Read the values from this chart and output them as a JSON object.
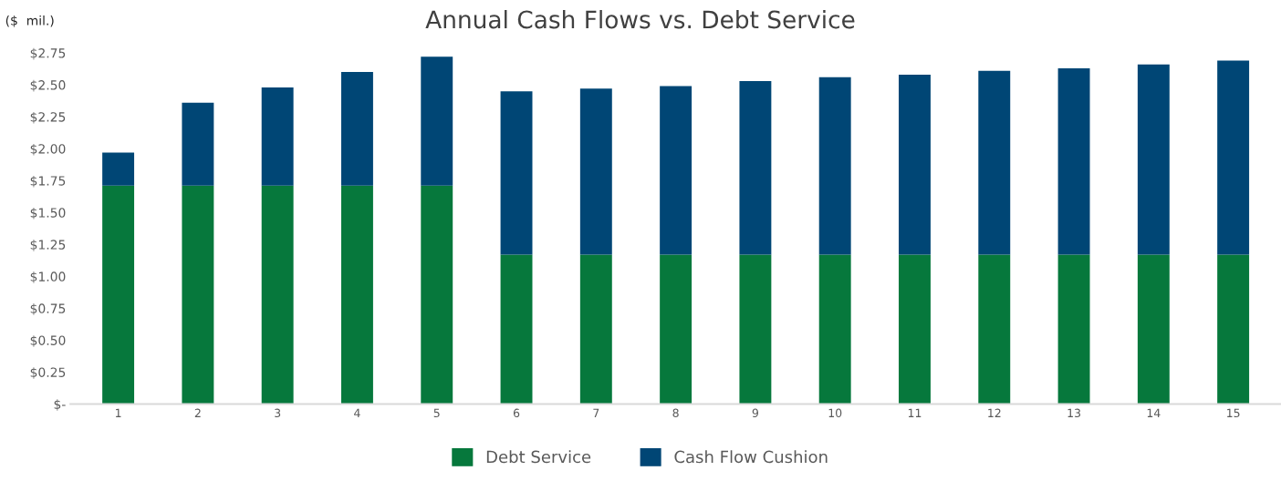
{
  "chart_data": {
    "type": "bar",
    "title": "Annual Cash Flows vs. Debt Service",
    "ylabel": "($  mil.)",
    "categories": [
      "1",
      "2",
      "3",
      "4",
      "5",
      "6",
      "7",
      "8",
      "9",
      "10",
      "11",
      "12",
      "13",
      "14",
      "15"
    ],
    "stacked": true,
    "series": [
      {
        "name": "Debt Service",
        "color": "#06783c",
        "values": [
          1.71,
          1.71,
          1.71,
          1.71,
          1.71,
          1.17,
          1.17,
          1.17,
          1.17,
          1.17,
          1.17,
          1.17,
          1.17,
          1.17,
          1.17
        ]
      },
      {
        "name": "Cash Flow Cushion",
        "color": "#004675",
        "values": [
          0.26,
          0.65,
          0.77,
          0.89,
          1.01,
          1.28,
          1.3,
          1.32,
          1.36,
          1.39,
          1.41,
          1.44,
          1.46,
          1.49,
          1.52
        ]
      }
    ],
    "ylim": [
      0,
      2.75
    ],
    "yticks": [
      {
        "value": 0,
        "label": "$-"
      },
      {
        "value": 0.25,
        "label": "$0.25"
      },
      {
        "value": 0.5,
        "label": "$0.50"
      },
      {
        "value": 0.75,
        "label": "$0.75"
      },
      {
        "value": 1.0,
        "label": "$1.00"
      },
      {
        "value": 1.25,
        "label": "$1.25"
      },
      {
        "value": 1.5,
        "label": "$1.50"
      },
      {
        "value": 1.75,
        "label": "$1.75"
      },
      {
        "value": 2.0,
        "label": "$2.00"
      },
      {
        "value": 2.25,
        "label": "$2.25"
      },
      {
        "value": 2.5,
        "label": "$2.50"
      },
      {
        "value": 2.75,
        "label": "$2.75"
      }
    ],
    "grid": false,
    "legend": "bottom"
  }
}
